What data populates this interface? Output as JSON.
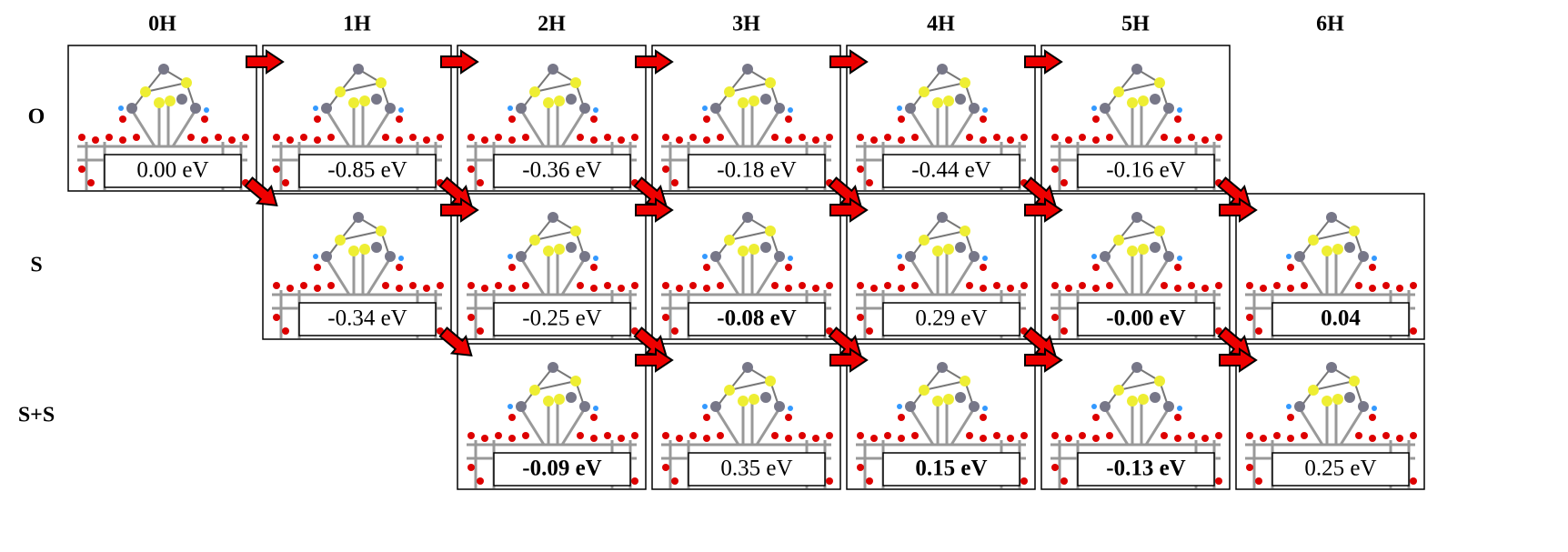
{
  "columns": [
    "0H",
    "1H",
    "2H",
    "3H",
    "4H",
    "5H",
    "6H"
  ],
  "rows": [
    {
      "label": "O",
      "cells": [
        {
          "energy": "0.00 eV",
          "bold": false
        },
        {
          "energy": "-0.85 eV",
          "bold": false
        },
        {
          "energy": "-0.36 eV",
          "bold": false
        },
        {
          "energy": "-0.18 eV",
          "bold": false
        },
        {
          "energy": "-0.44 eV",
          "bold": false
        },
        {
          "energy": "-0.16 eV",
          "bold": false
        },
        null
      ]
    },
    {
      "label": "S",
      "cells": [
        null,
        {
          "energy": "-0.34 eV",
          "bold": false
        },
        {
          "energy": "-0.25 eV",
          "bold": false
        },
        {
          "energy": "-0.08 eV",
          "bold": true
        },
        {
          "energy": "0.29 eV",
          "bold": false
        },
        {
          "energy": "-0.00 eV",
          "bold": true
        },
        {
          "energy": "0.04",
          "bold": true
        }
      ]
    },
    {
      "label": "S+S",
      "cells": [
        null,
        null,
        {
          "energy": "-0.09 eV",
          "bold": true
        },
        {
          "energy": "0.35 eV",
          "bold": false
        },
        {
          "energy": "0.15 eV",
          "bold": true
        },
        {
          "energy": "-0.13 eV",
          "bold": true
        },
        {
          "energy": "0.25 eV",
          "bold": false
        }
      ]
    }
  ]
}
